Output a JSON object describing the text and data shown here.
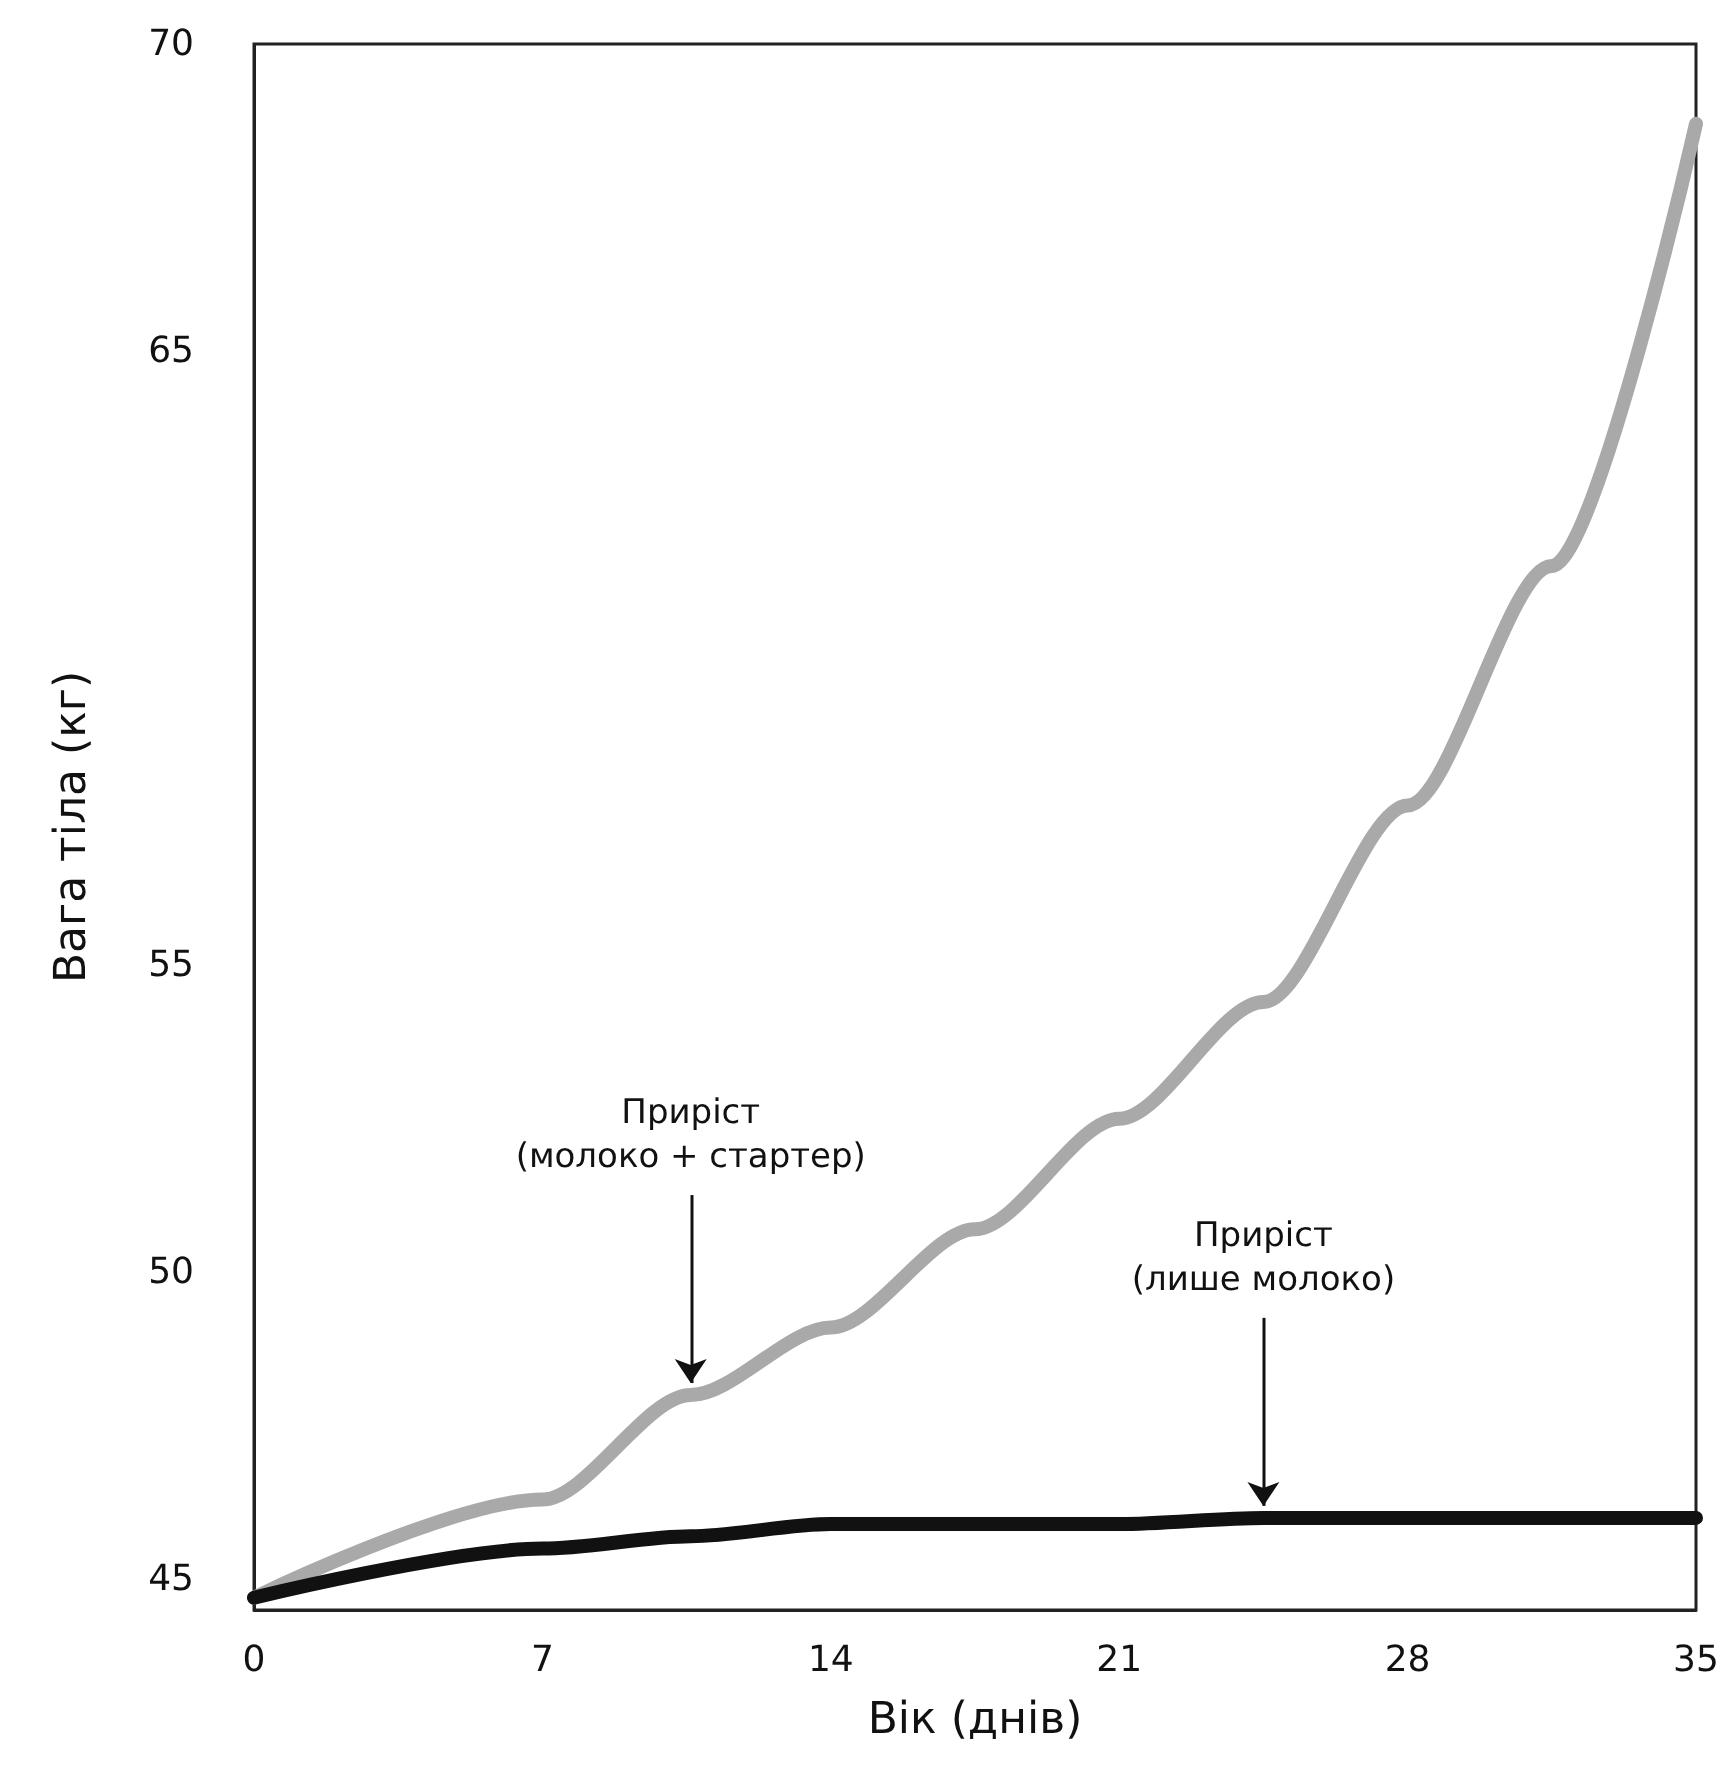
{
  "chart_data": {
    "type": "line",
    "xlabel": "Вік (днів)",
    "ylabel": "Вага тіла (кг)",
    "x": [
      0,
      7,
      10.6,
      14,
      17.5,
      21,
      24.5,
      28,
      31.5,
      35
    ],
    "series": [
      {
        "color": "#a9a9a9",
        "values": [
          44.7,
          46.3,
          48.0,
          49.1,
          50.7,
          52.5,
          54.4,
          57.6,
          61.5,
          68.7
        ]
      },
      {
        "color": "#111111",
        "values": [
          44.7,
          45.5,
          45.7,
          45.9,
          45.9,
          45.9,
          46.0,
          46.0,
          46.0,
          46.0
        ]
      }
    ],
    "xlim": [
      0,
      35
    ],
    "xticks": [
      0,
      7,
      14,
      21,
      28,
      35
    ],
    "ylim": [
      44.5,
      70
    ],
    "yticks": [
      45,
      50,
      55,
      65,
      70
    ],
    "marker": "none",
    "line_style": "solid",
    "annotations": [
      {
        "text": "Приріст\n(молоко + стартер)",
        "x": 10.6,
        "y": 48.0
      },
      {
        "text": "Приріст\n(лише молоко)",
        "x": 24.5,
        "y": 46.0
      }
    ]
  }
}
